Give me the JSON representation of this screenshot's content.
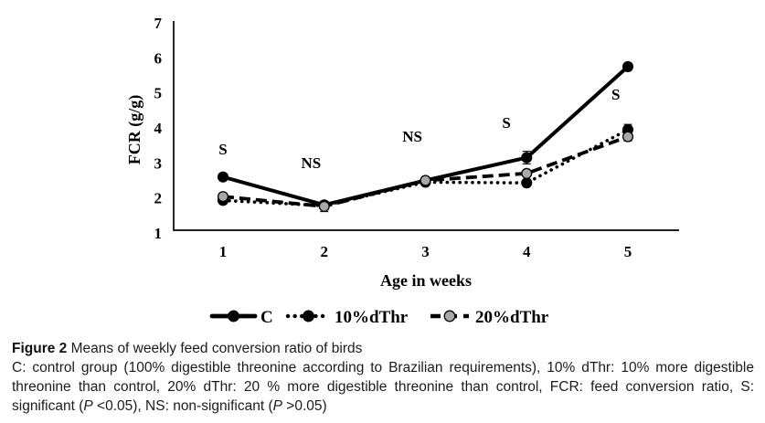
{
  "chart_data": {
    "type": "line",
    "title": "",
    "xlabel": "Age in weeks",
    "ylabel": "FCR (g/g)",
    "x_ticks": [
      1,
      2,
      3,
      4,
      5
    ],
    "y_ticks": [
      1,
      2,
      3,
      4,
      5,
      6,
      7
    ],
    "ylim": [
      1,
      7
    ],
    "grid": false,
    "legend_position": "bottom",
    "axis_color": "#000000",
    "series": [
      {
        "name": "C",
        "line_style": "solid",
        "line_color": "#000000",
        "marker": "circle",
        "marker_color": "#000000",
        "values": [
          2.6,
          1.8,
          2.5,
          3.15,
          5.75
        ],
        "errors": [
          0,
          0,
          0,
          0.18,
          0
        ]
      },
      {
        "name": "10%dThr",
        "line_style": "dotted",
        "line_color": "#000000",
        "marker": "circle",
        "marker_color": "#000000",
        "values": [
          1.93,
          1.78,
          2.45,
          2.43,
          3.95
        ],
        "errors": [
          0,
          0,
          0,
          0,
          0.15
        ]
      },
      {
        "name": "20%dThr",
        "line_style": "dashed",
        "line_color": "#000000",
        "marker": "circle",
        "marker_color": "#a8a8a8",
        "values": [
          2.04,
          1.76,
          2.5,
          2.7,
          3.75
        ],
        "errors": [
          0,
          0.15,
          0,
          0,
          0.12
        ]
      }
    ],
    "annotations": [
      {
        "text": "S",
        "week": 1.0,
        "fcr": 3.24
      },
      {
        "text": "NS",
        "week": 1.87,
        "fcr": 2.85
      },
      {
        "text": "NS",
        "week": 2.87,
        "fcr": 3.61
      },
      {
        "text": "S",
        "week": 3.8,
        "fcr": 4.0
      },
      {
        "text": "S",
        "week": 4.88,
        "fcr": 4.81
      }
    ]
  },
  "caption": {
    "figure_label": "Figure 2",
    "title": "Means of weekly feed conversion ratio of birds",
    "body_parts": [
      {
        "text": "C: control group (100% digestible threonine according to Brazilian requirements), 10% dThr: 10% more digestible threonine than control, 20% dThr: 20 % more digestible threonine than control, FCR: feed conversion ratio, S: significant ("
      },
      {
        "text": "P",
        "italic": true
      },
      {
        "text": " <0.05), NS: non-significant ("
      },
      {
        "text": "P",
        "italic": true
      },
      {
        "text": " >0.05)"
      }
    ]
  }
}
